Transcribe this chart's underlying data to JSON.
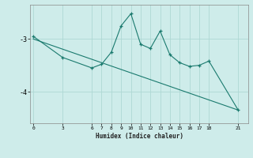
{
  "xlabel": "Humidex (Indice chaleur)",
  "background_color": "#ceecea",
  "line_color": "#1a7a6e",
  "grid_color": "#aed8d4",
  "line1_x": [
    0,
    3,
    6,
    7,
    8,
    9,
    10,
    11,
    12,
    13,
    14,
    15,
    16,
    17,
    18,
    21
  ],
  "line1_y": [
    -2.95,
    -3.35,
    -3.55,
    -3.48,
    -3.25,
    -2.75,
    -2.52,
    -3.1,
    -3.18,
    -2.85,
    -3.3,
    -3.45,
    -3.52,
    -3.5,
    -3.42,
    -4.35
  ],
  "trend_x": [
    0,
    21
  ],
  "trend_y": [
    -3.0,
    -4.35
  ],
  "yticks": [
    -4,
    -3
  ],
  "ylim": [
    -4.6,
    -2.35
  ],
  "xlim": [
    -0.3,
    22.0
  ],
  "xticks": [
    0,
    3,
    6,
    7,
    8,
    9,
    10,
    11,
    12,
    13,
    14,
    15,
    16,
    17,
    18,
    21
  ],
  "xlabel_fontsize": 5.5,
  "ytick_fontsize": 6.0,
  "xtick_fontsize": 4.5
}
